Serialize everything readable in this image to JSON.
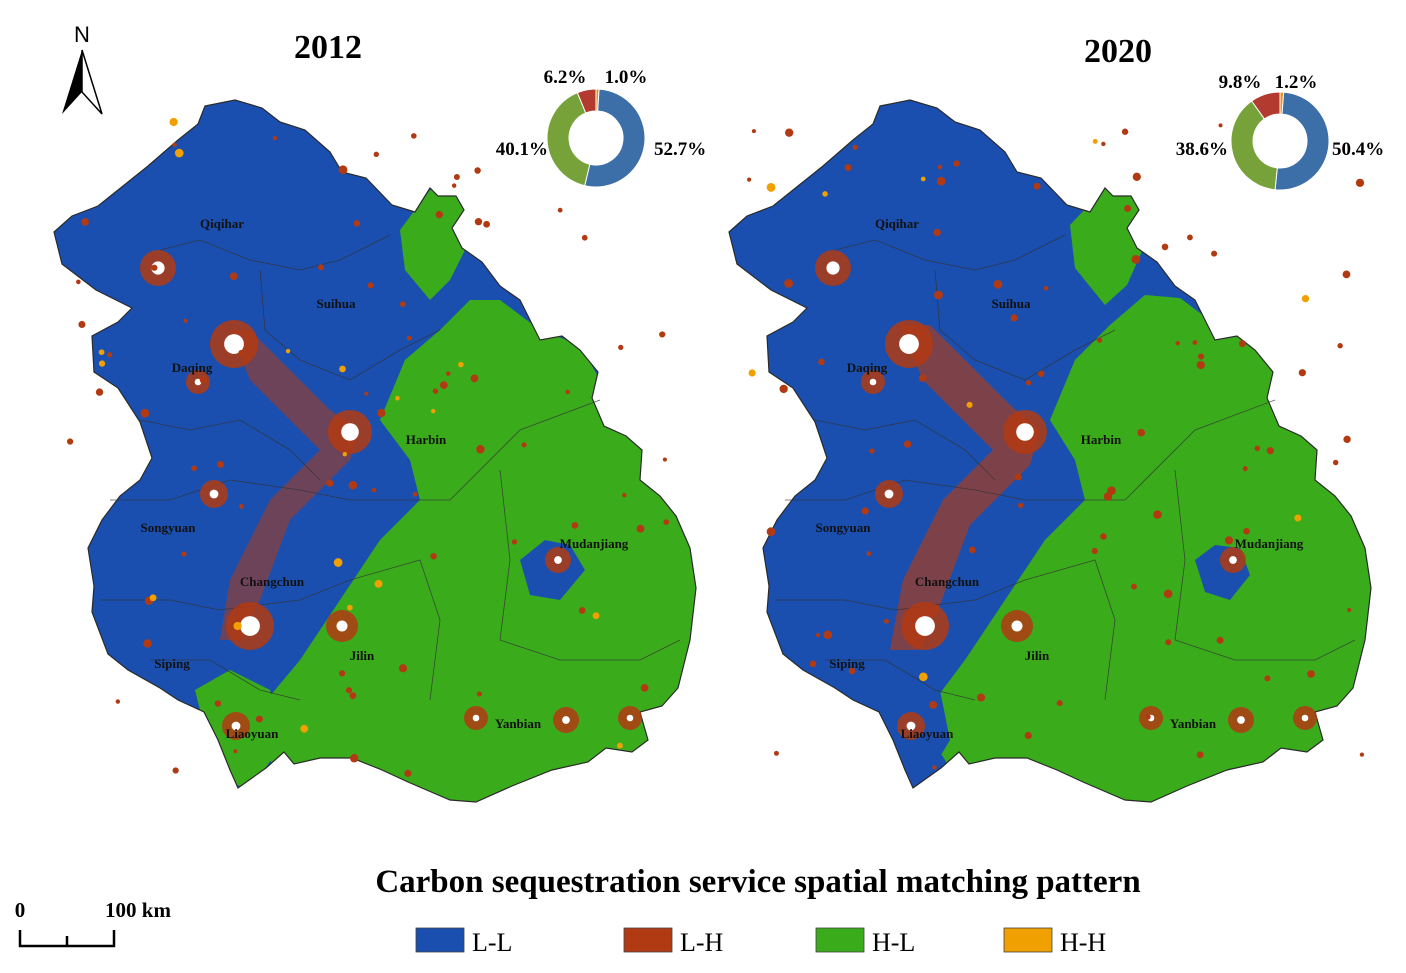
{
  "colors": {
    "L-L": "#1a4fb0",
    "L-H": "#b23a12",
    "H-L": "#3aac1c",
    "H-H": "#f0a000",
    "donut_LL": "#3c6ea8",
    "donut_LH": "#b23a2e",
    "donut_HL": "#77a23a",
    "donut_HH": "#e89020"
  },
  "north_arrow": {
    "label": "N",
    "icon": "north-arrow-icon"
  },
  "scale_bar": {
    "start_label": "0",
    "end_label": "100 km"
  },
  "title": "Carbon sequestration service spatial  matching pattern",
  "legend": [
    {
      "key": "L-L",
      "label": "L-L"
    },
    {
      "key": "L-H",
      "label": "L-H"
    },
    {
      "key": "H-L",
      "label": "H-L"
    },
    {
      "key": "H-H",
      "label": "H-H"
    }
  ],
  "maps": [
    {
      "year": "2012",
      "donut": [
        {
          "key": "L-L",
          "value": 52.7,
          "label": "52.7%"
        },
        {
          "key": "H-L",
          "value": 40.1,
          "label": "40.1%"
        },
        {
          "key": "L-H",
          "value": 6.2,
          "label": "6.2%"
        },
        {
          "key": "H-H",
          "value": 1.0,
          "label": "1.0%"
        }
      ],
      "cities": [
        "Qiqihar",
        "Suihua",
        "Daqing",
        "Harbin",
        "Songyuan",
        "Mudanjiang",
        "Changchun",
        "Siping",
        "Jilin",
        "Liaoyuan",
        "Yanbian"
      ]
    },
    {
      "year": "2020",
      "donut": [
        {
          "key": "L-L",
          "value": 50.4,
          "label": "50.4%"
        },
        {
          "key": "H-L",
          "value": 38.6,
          "label": "38.6%"
        },
        {
          "key": "L-H",
          "value": 9.8,
          "label": "9.8%"
        },
        {
          "key": "H-H",
          "value": 1.2,
          "label": "1.2%"
        }
      ],
      "cities": [
        "Qiqihar",
        "Suihua",
        "Daqing",
        "Harbin",
        "Songyuan",
        "Mudanjiang",
        "Changchun",
        "Siping",
        "Jilin",
        "Liaoyuan",
        "Yanbian"
      ]
    }
  ]
}
